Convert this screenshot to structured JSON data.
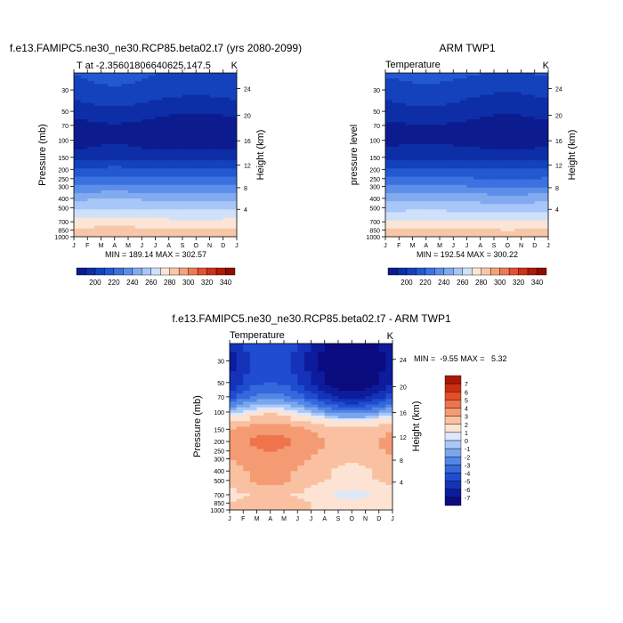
{
  "chart_data": [
    {
      "type": "contour",
      "title": "f.e13.FAMIPC5.ne30_ne30.RCP85.beta02.t7 (yrs 2080-2099)",
      "left_string": "T at -2.35601806640625,147.5",
      "right_string": "K",
      "ylabel": "Pressure (mb)",
      "ylabel_right": "Height (km)",
      "x_tick_labels": [
        "J",
        "F",
        "M",
        "A",
        "M",
        "J",
        "J",
        "A",
        "S",
        "O",
        "N",
        "D",
        "J"
      ],
      "y_tick_labels": [
        "30",
        "50",
        "70",
        "100",
        "150",
        "200",
        "250",
        "300",
        "400",
        "500",
        "700",
        "850",
        "1000"
      ],
      "y_ticks_mb": [
        30,
        50,
        70,
        100,
        150,
        200,
        250,
        300,
        400,
        500,
        700,
        850,
        1000
      ],
      "height_tick_labels": [
        "24",
        "20",
        "16",
        "12",
        "8",
        "4"
      ],
      "height_ticks_mb": [
        29,
        55,
        101,
        180,
        310,
        520
      ],
      "ylim_mb": [
        20,
        1000
      ],
      "stats": "MIN = 189.14 MAX = 302.57",
      "temperature_profile": [
        {
          "p": 20,
          "t": 220
        },
        {
          "p": 30,
          "t": 216
        },
        {
          "p": 50,
          "t": 204
        },
        {
          "p": 70,
          "t": 196
        },
        {
          "p": 100,
          "t": 194
        },
        {
          "p": 150,
          "t": 206
        },
        {
          "p": 200,
          "t": 222
        },
        {
          "p": 250,
          "t": 232
        },
        {
          "p": 300,
          "t": 242
        },
        {
          "p": 400,
          "t": 258
        },
        {
          "p": 500,
          "t": 268
        },
        {
          "p": 600,
          "t": 276
        },
        {
          "p": 700,
          "t": 284
        },
        {
          "p": 850,
          "t": 292
        },
        {
          "p": 1000,
          "t": 300
        }
      ],
      "colorbar": {
        "levels": [
          190,
          200,
          210,
          220,
          230,
          240,
          250,
          260,
          270,
          280,
          290,
          300,
          310,
          320,
          330,
          340,
          350
        ],
        "labels": [
          "200",
          "220",
          "240",
          "260",
          "280",
          "300",
          "320",
          "340"
        ],
        "colors": [
          "#0c1c8f",
          "#0d2ea6",
          "#1442bd",
          "#2258d2",
          "#3b72df",
          "#5d8ee8",
          "#82aaf0",
          "#a8c6f7",
          "#cfe0fb",
          "#fbe5d6",
          "#f8c6a8",
          "#f4a27c",
          "#ee7a52",
          "#e4512f",
          "#cf3118",
          "#b01a08",
          "#8e0c02"
        ]
      }
    },
    {
      "type": "contour",
      "title": "ARM TWP1",
      "left_string": "Temperature",
      "right_string": "K",
      "ylabel": "pressure level",
      "ylabel_right": "Height (km)",
      "x_tick_labels": [
        "J",
        "F",
        "M",
        "A",
        "M",
        "J",
        "J",
        "A",
        "S",
        "O",
        "N",
        "D",
        "J"
      ],
      "y_tick_labels": [
        "30",
        "50",
        "70",
        "100",
        "150",
        "200",
        "250",
        "300",
        "400",
        "500",
        "700",
        "850",
        "1000"
      ],
      "y_ticks_mb": [
        30,
        50,
        70,
        100,
        150,
        200,
        250,
        300,
        400,
        500,
        700,
        850,
        1000
      ],
      "height_tick_labels": [
        "24",
        "20",
        "16",
        "12",
        "8",
        "4"
      ],
      "height_ticks_mb": [
        29,
        55,
        101,
        180,
        310,
        520
      ],
      "ylim_mb": [
        20,
        1000
      ],
      "stats": "MIN = 192.54 MAX = 300.22",
      "temperature_profile": [
        {
          "p": 20,
          "t": 222
        },
        {
          "p": 30,
          "t": 214
        },
        {
          "p": 50,
          "t": 205
        },
        {
          "p": 70,
          "t": 197
        },
        {
          "p": 100,
          "t": 195
        },
        {
          "p": 150,
          "t": 207
        },
        {
          "p": 200,
          "t": 221
        },
        {
          "p": 250,
          "t": 231
        },
        {
          "p": 300,
          "t": 240
        },
        {
          "p": 400,
          "t": 256
        },
        {
          "p": 500,
          "t": 266
        },
        {
          "p": 600,
          "t": 274
        },
        {
          "p": 700,
          "t": 282
        },
        {
          "p": 850,
          "t": 291
        },
        {
          "p": 1000,
          "t": 299
        }
      ],
      "colorbar": {
        "levels": [
          190,
          200,
          210,
          220,
          230,
          240,
          250,
          260,
          270,
          280,
          290,
          300,
          310,
          320,
          330,
          340,
          350
        ],
        "labels": [
          "200",
          "220",
          "240",
          "260",
          "280",
          "300",
          "320",
          "340"
        ],
        "colors": [
          "#0c1c8f",
          "#0d2ea6",
          "#1442bd",
          "#2258d2",
          "#3b72df",
          "#5d8ee8",
          "#82aaf0",
          "#a8c6f7",
          "#cfe0fb",
          "#fbe5d6",
          "#f8c6a8",
          "#f4a27c",
          "#ee7a52",
          "#e4512f",
          "#cf3118",
          "#b01a08",
          "#8e0c02"
        ]
      }
    },
    {
      "type": "contour",
      "title": "f.e13.FAMIPC5.ne30_ne30.RCP85.beta02.t7 - ARM TWP1",
      "left_string": "Temperature",
      "right_string": "K",
      "ylabel": "Pressure (mb)",
      "ylabel_right": "Height (km)",
      "x_tick_labels": [
        "J",
        "F",
        "M",
        "A",
        "M",
        "J",
        "J",
        "A",
        "S",
        "O",
        "N",
        "D",
        "J"
      ],
      "y_tick_labels": [
        "30",
        "50",
        "70",
        "100",
        "150",
        "200",
        "250",
        "300",
        "400",
        "500",
        "700",
        "850",
        "1000"
      ],
      "y_ticks_mb": [
        30,
        50,
        70,
        100,
        150,
        200,
        250,
        300,
        400,
        500,
        700,
        850,
        1000
      ],
      "height_tick_labels": [
        "24",
        "20",
        "16",
        "12",
        "8",
        "4"
      ],
      "height_ticks_mb": [
        29,
        55,
        101,
        180,
        310,
        520
      ],
      "ylim_mb": [
        20,
        1000
      ],
      "stats": "MIN =  -9.55 MAX =   5.32",
      "difference_profile": [
        {
          "p": 20,
          "t": -6
        },
        {
          "p": 30,
          "t": -6.5
        },
        {
          "p": 50,
          "t": -6
        },
        {
          "p": 70,
          "t": -4.5
        },
        {
          "p": 90,
          "t": -2
        },
        {
          "p": 105,
          "t": 0
        },
        {
          "p": 120,
          "t": 1.5
        },
        {
          "p": 150,
          "t": 3
        },
        {
          "p": 200,
          "t": 3.5
        },
        {
          "p": 300,
          "t": 3
        },
        {
          "p": 400,
          "t": 2.5
        },
        {
          "p": 500,
          "t": 2.5
        },
        {
          "p": 700,
          "t": 1.5
        },
        {
          "p": 850,
          "t": 2
        },
        {
          "p": 1000,
          "t": 2
        }
      ],
      "colorbar": {
        "levels": [
          -8,
          -7,
          -6,
          -5,
          -4,
          -3,
          -2,
          -1,
          0,
          1,
          2,
          3,
          4,
          5,
          6,
          7,
          8
        ],
        "labels": [
          "7",
          "6",
          "5",
          "4",
          "3",
          "2",
          "1",
          "0",
          "-1",
          "-2",
          "-3",
          "-4",
          "-5",
          "-6",
          "-7"
        ],
        "colors": [
          "#0a0c7f",
          "#0d1c9c",
          "#1433b8",
          "#1f4cd0",
          "#3568dc",
          "#5387e6",
          "#7ba6ef",
          "#a9c8f7",
          "#dde9fb",
          "#fde3d3",
          "#f9c1a2",
          "#f59b73",
          "#ef744b",
          "#e34e28",
          "#cc2d12",
          "#ac1804"
        ]
      }
    }
  ]
}
